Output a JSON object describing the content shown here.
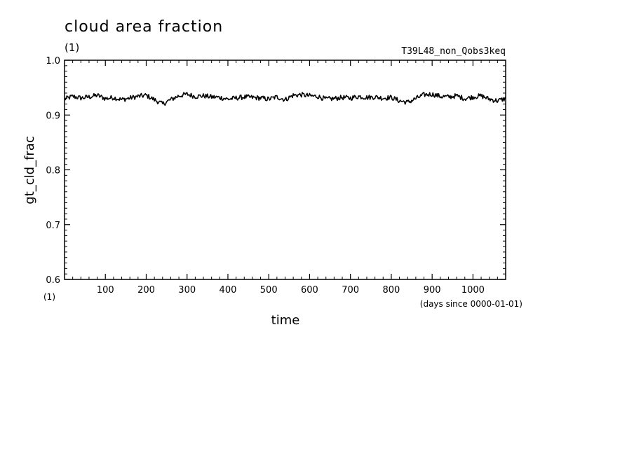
{
  "chart_data": {
    "type": "line",
    "title": "cloud area fraction",
    "title_unit": "(1)",
    "run_label": "T39L48_non_Qobs3keq",
    "xlabel": "time",
    "xlabel_unit": "(days since 0000-01-01)",
    "ylabel": "gt_cld_frac",
    "y_unit": "(1)",
    "xlim": [
      0,
      1080
    ],
    "ylim": [
      0.6,
      1.0
    ],
    "x_ticks": [
      100,
      200,
      300,
      400,
      500,
      600,
      700,
      800,
      900,
      1000
    ],
    "y_ticks": [
      "0.6",
      "0.7",
      "0.8",
      "0.9",
      "1.0"
    ],
    "line_color": "#000000",
    "series": [
      {
        "x": [
          0,
          20,
          40,
          60,
          80,
          100,
          120,
          140,
          160,
          180,
          200,
          220,
          240,
          260,
          280,
          300,
          320,
          340,
          360,
          380,
          400,
          420,
          440,
          460,
          480,
          500,
          520,
          540,
          560,
          580,
          600,
          620,
          640,
          660,
          680,
          700,
          720,
          740,
          760,
          780,
          800,
          820,
          840,
          860,
          880,
          900,
          920,
          940,
          960,
          980,
          1000,
          1020,
          1040,
          1060,
          1080
        ],
        "y": [
          0.929,
          0.934,
          0.931,
          0.933,
          0.936,
          0.93,
          0.932,
          0.928,
          0.931,
          0.934,
          0.936,
          0.928,
          0.92,
          0.928,
          0.935,
          0.938,
          0.934,
          0.935,
          0.933,
          0.932,
          0.929,
          0.931,
          0.933,
          0.932,
          0.931,
          0.929,
          0.933,
          0.928,
          0.936,
          0.937,
          0.935,
          0.934,
          0.929,
          0.93,
          0.932,
          0.931,
          0.934,
          0.932,
          0.933,
          0.931,
          0.932,
          0.926,
          0.923,
          0.93,
          0.937,
          0.938,
          0.934,
          0.933,
          0.935,
          0.93,
          0.933,
          0.935,
          0.929,
          0.926,
          0.93
        ]
      }
    ]
  }
}
